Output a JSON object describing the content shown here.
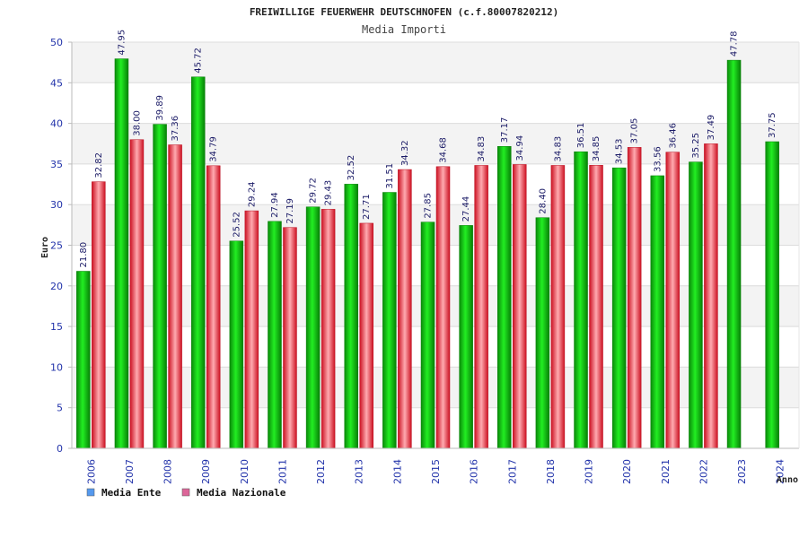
{
  "chart_data": {
    "type": "bar",
    "title": "FREIWILLIGE FEUERWEHR DEUTSCHNOFEN (c.f.80007820212)",
    "subtitle": "Media Importi",
    "xlabel": "Anno",
    "ylabel": "Euro",
    "ylim": [
      0,
      50
    ],
    "yticks": [
      0,
      5,
      10,
      15,
      20,
      25,
      30,
      35,
      40,
      45,
      50
    ],
    "grid": true,
    "legend_position": "bottom-left",
    "categories": [
      "2006",
      "2007",
      "2008",
      "2009",
      "2010",
      "2011",
      "2012",
      "2013",
      "2014",
      "2015",
      "2016",
      "2017",
      "2018",
      "2019",
      "2020",
      "2021",
      "2022",
      "2023",
      "2024"
    ],
    "series": [
      {
        "name": "Media Ente",
        "color": "#11bb11",
        "legend_color": "#5599ee",
        "values": [
          21.8,
          47.95,
          39.89,
          45.72,
          25.52,
          27.94,
          29.72,
          32.52,
          31.51,
          27.85,
          27.44,
          37.17,
          28.4,
          36.51,
          34.53,
          33.56,
          35.25,
          47.78,
          37.75
        ],
        "labels": [
          "21.80",
          "47.95",
          "39.89",
          "45.72",
          "25.52",
          "27.94",
          "29.72",
          "32.52",
          "31.51",
          "27.85",
          "27.44",
          "37.17",
          "28.40",
          "36.51",
          "34.53",
          "33.56",
          "35.25",
          "47.78",
          "37.75"
        ]
      },
      {
        "name": "Media Nazionale",
        "color": "#ee2233",
        "legend_color": "#dd6699",
        "values": [
          32.82,
          38.0,
          37.36,
          34.79,
          29.24,
          27.19,
          29.43,
          27.71,
          34.32,
          34.68,
          34.83,
          34.94,
          34.83,
          34.85,
          37.05,
          36.46,
          37.49,
          null,
          null
        ],
        "labels": [
          "32.82",
          "38.00",
          "37.36",
          "34.79",
          "29.24",
          "27.19",
          "29.43",
          "27.71",
          "34.32",
          "34.68",
          "34.83",
          "34.94",
          "34.83",
          "34.85",
          "37.05",
          "36.46",
          "37.49",
          null,
          null
        ]
      }
    ]
  }
}
